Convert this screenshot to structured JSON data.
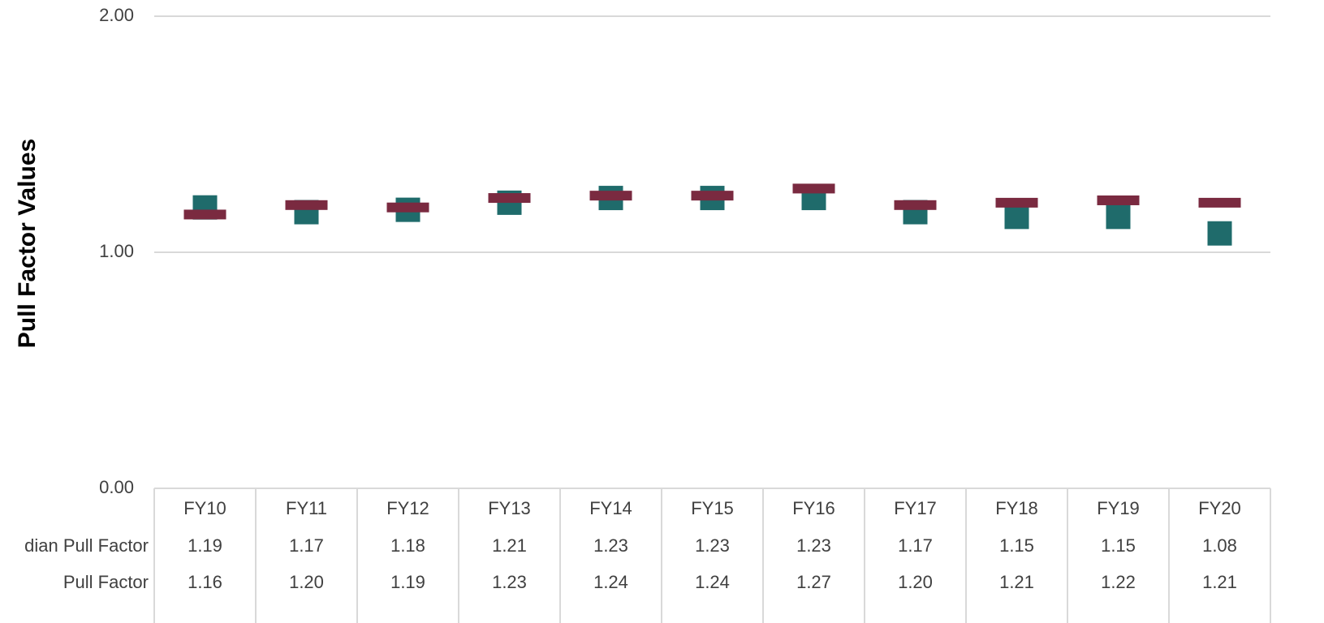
{
  "chart_data": {
    "type": "dot",
    "y_label": "Pull Factor Values",
    "categories": [
      "FY10",
      "FY11",
      "FY12",
      "FY13",
      "FY14",
      "FY15",
      "FY16",
      "FY17",
      "FY18",
      "FY19",
      "FY20"
    ],
    "series": [
      {
        "name": "dian Pull Factor",
        "color": "#1f6b6b",
        "marker": "square",
        "values": [
          1.19,
          1.17,
          1.18,
          1.21,
          1.23,
          1.23,
          1.23,
          1.17,
          1.15,
          1.15,
          1.08
        ],
        "value_labels": [
          "1.19",
          "1.17",
          "1.18",
          "1.21",
          "1.23",
          "1.23",
          "1.23",
          "1.17",
          "1.15",
          "1.15",
          "1.08"
        ]
      },
      {
        "name": "Pull Factor",
        "color": "#7a2a40",
        "marker": "dash",
        "values": [
          1.16,
          1.2,
          1.19,
          1.23,
          1.24,
          1.24,
          1.27,
          1.2,
          1.21,
          1.22,
          1.21
        ],
        "value_labels": [
          "1.16",
          "1.20",
          "1.19",
          "1.23",
          "1.24",
          "1.24",
          "1.27",
          "1.20",
          "1.21",
          "1.22",
          "1.21"
        ]
      }
    ],
    "ylim": [
      0,
      2
    ],
    "yticks": [
      {
        "value": 0,
        "label": "0.00"
      },
      {
        "value": 1,
        "label": "1.00"
      },
      {
        "value": 2,
        "label": "2.00"
      }
    ],
    "grid": true
  }
}
